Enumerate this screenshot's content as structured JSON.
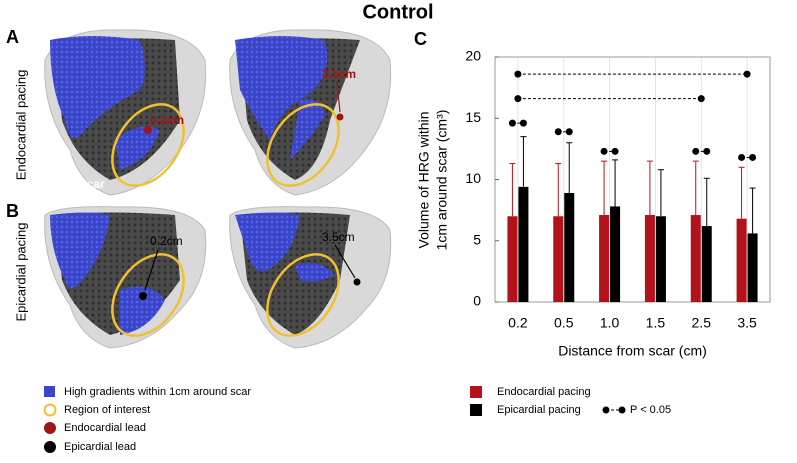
{
  "title": "Control",
  "panels": {
    "a": "A",
    "b": "B",
    "c": "C"
  },
  "rows": {
    "endocardial": "Endocardial pacing",
    "epicardial": "Epicardial pacing"
  },
  "heart_labels": {
    "scar": "scar",
    "endo_near": "0.2cm",
    "endo_far": "3.5cm",
    "epi_near": "0.2cm",
    "epi_far": "3.5cm"
  },
  "legend": [
    "High gradients within 1cm around scar",
    "Region of interest",
    "Endocardial lead",
    "Epicardial lead"
  ],
  "chart_data": {
    "type": "bar",
    "ylabel": [
      "Volume of HRG within",
      "1cm around scar (cm³)"
    ],
    "xlabel": "Distance from scar (cm)",
    "categories": [
      "0.2",
      "0.5",
      "1.0",
      "1.5",
      "2.5",
      "3.5"
    ],
    "series": [
      {
        "name": "Endocardial pacing",
        "color": "#b4121b",
        "values": [
          7.0,
          7.0,
          7.1,
          7.1,
          7.1,
          6.8
        ],
        "errors": [
          4.3,
          4.3,
          4.4,
          4.4,
          4.4,
          4.2
        ]
      },
      {
        "name": "Epicardial pacing",
        "color": "#000000",
        "values": [
          9.4,
          8.9,
          7.8,
          7.0,
          6.2,
          5.6
        ],
        "errors": [
          4.1,
          4.1,
          3.8,
          3.8,
          3.9,
          3.7
        ]
      }
    ],
    "ylim": [
      0,
      20
    ],
    "yticks": [
      0,
      5,
      10,
      15,
      20
    ],
    "grid": true,
    "significance_label": "P < 0.05",
    "significance": [
      {
        "category": "0.2",
        "y": 14.6
      },
      {
        "category": "0.5",
        "y": 13.9
      },
      {
        "category": "1.0",
        "y": 12.3
      },
      {
        "category": "2.5",
        "y": 12.3
      },
      {
        "category": "3.5",
        "y": 11.8
      },
      {
        "from": "0.2",
        "to": "2.5",
        "y": 16.6
      },
      {
        "from": "0.2",
        "to": "3.5",
        "y": 18.6
      }
    ]
  }
}
